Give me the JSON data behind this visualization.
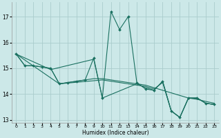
{
  "xlabel": "Humidex (Indice chaleur)",
  "bg_color": "#cce8e8",
  "grid_color": "#aacccc",
  "line_color": "#1a7060",
  "xlim": [
    -0.5,
    23.5
  ],
  "ylim": [
    12.9,
    17.55
  ],
  "yticks": [
    13,
    14,
    15,
    16,
    17
  ],
  "xticks": [
    0,
    1,
    2,
    3,
    4,
    5,
    6,
    7,
    8,
    9,
    10,
    11,
    12,
    13,
    14,
    15,
    16,
    17,
    18,
    19,
    20,
    21,
    22,
    23
  ],
  "line1": [
    [
      0,
      15.55
    ],
    [
      1,
      15.1
    ],
    [
      2,
      15.1
    ],
    [
      3,
      15.05
    ],
    [
      4,
      15.0
    ],
    [
      5,
      14.4
    ],
    [
      6,
      14.45
    ],
    [
      7,
      14.5
    ],
    [
      8,
      14.55
    ],
    [
      9,
      15.4
    ],
    [
      10,
      13.85
    ],
    [
      11,
      17.2
    ],
    [
      12,
      16.5
    ],
    [
      13,
      17.0
    ],
    [
      14,
      14.45
    ],
    [
      15,
      14.2
    ],
    [
      16,
      14.15
    ],
    [
      17,
      14.5
    ],
    [
      18,
      13.35
    ],
    [
      19,
      13.1
    ],
    [
      20,
      13.85
    ],
    [
      21,
      13.85
    ],
    [
      22,
      13.65
    ],
    [
      23,
      13.6
    ]
  ],
  "line2": [
    [
      0,
      15.55
    ],
    [
      1,
      15.1
    ],
    [
      2,
      15.1
    ],
    [
      3,
      15.05
    ],
    [
      4,
      15.0
    ],
    [
      5,
      14.4
    ],
    [
      6,
      14.45
    ],
    [
      7,
      14.5
    ],
    [
      8,
      14.55
    ],
    [
      9,
      14.6
    ],
    [
      10,
      14.6
    ],
    [
      11,
      14.55
    ],
    [
      12,
      14.5
    ],
    [
      13,
      14.45
    ],
    [
      14,
      14.4
    ],
    [
      15,
      14.35
    ],
    [
      16,
      14.25
    ],
    [
      17,
      14.15
    ],
    [
      18,
      14.05
    ],
    [
      19,
      13.95
    ],
    [
      20,
      13.85
    ],
    [
      21,
      13.8
    ],
    [
      22,
      13.72
    ],
    [
      23,
      13.65
    ]
  ],
  "line3": [
    [
      0,
      15.55
    ],
    [
      4,
      14.95
    ],
    [
      9,
      15.35
    ],
    [
      10,
      13.85
    ],
    [
      14,
      14.4
    ],
    [
      15,
      14.25
    ],
    [
      16,
      14.15
    ],
    [
      17,
      14.5
    ],
    [
      18,
      13.35
    ],
    [
      19,
      13.1
    ],
    [
      20,
      13.85
    ],
    [
      21,
      13.85
    ],
    [
      22,
      13.65
    ],
    [
      23,
      13.6
    ]
  ],
  "line4": [
    [
      0,
      15.55
    ],
    [
      5,
      14.4
    ],
    [
      10,
      14.55
    ],
    [
      15,
      14.3
    ],
    [
      16,
      14.2
    ],
    [
      17,
      14.45
    ],
    [
      18,
      13.35
    ],
    [
      19,
      13.1
    ],
    [
      20,
      13.85
    ],
    [
      21,
      13.85
    ],
    [
      22,
      13.65
    ],
    [
      23,
      13.6
    ]
  ]
}
